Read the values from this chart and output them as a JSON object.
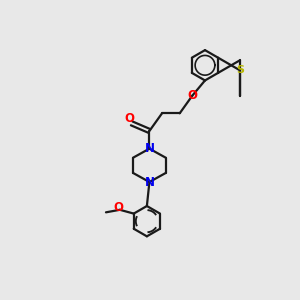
{
  "background_color": "#e8e8e8",
  "bond_color": "#1a1a1a",
  "S_color": "#b8b800",
  "O_color": "#ff0000",
  "N_color": "#0000ee",
  "bond_width": 1.6,
  "figsize": [
    3.0,
    3.0
  ],
  "dpi": 100,
  "xlim": [
    0,
    10
  ],
  "ylim": [
    0,
    10
  ]
}
